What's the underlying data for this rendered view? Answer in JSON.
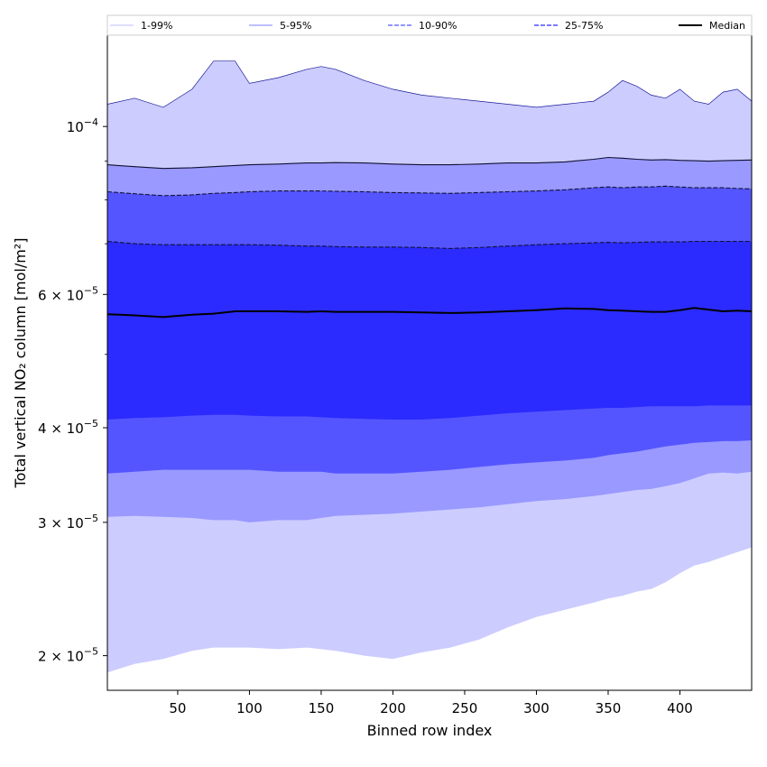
{
  "chart_data": {
    "type": "area",
    "xlabel": "Binned row index",
    "ylabel": "Total vertical NO₂ column [mol/m²]",
    "y_scale": "log",
    "xlim": [
      1,
      450
    ],
    "ylim": [
      1.8e-05,
      0.000132
    ],
    "x_ticks": [
      50,
      100,
      150,
      200,
      250,
      300,
      350,
      400
    ],
    "y_ticks": [
      {
        "value": 0.0001,
        "base": "10",
        "exp": "−4"
      },
      {
        "value": 6e-05,
        "base": "6 × 10",
        "exp": "−5"
      },
      {
        "value": 4e-05,
        "base": "4 × 10",
        "exp": "−5"
      },
      {
        "value": 3e-05,
        "base": "3 × 10",
        "exp": "−5"
      },
      {
        "value": 2e-05,
        "base": "2 × 10",
        "exp": "−5"
      }
    ],
    "grid": false,
    "legend_position": "top",
    "colors": {
      "band_1_99": "#ccccff",
      "band_5_95": "#9999ff",
      "band_10_90": "#5555ff",
      "band_25_75": "#2b2bff",
      "median": "#000000",
      "legend_line_1_99": "#ccccff",
      "legend_line_5_95": "#9999ff",
      "legend_line_10_90": "#5555ff",
      "legend_line_25_75": "#2b2bff"
    },
    "legend": [
      {
        "label": "1-99%",
        "style": "solid",
        "colorKey": "legend_line_1_99"
      },
      {
        "label": "5-95%",
        "style": "solid",
        "colorKey": "legend_line_5_95"
      },
      {
        "label": "10-90%",
        "style": "dashed",
        "colorKey": "legend_line_10_90"
      },
      {
        "label": "25-75%",
        "style": "dashed",
        "colorKey": "legend_line_25_75"
      },
      {
        "label": "Median",
        "style": "solid",
        "colorKey": "median"
      }
    ],
    "x": [
      1,
      20,
      40,
      60,
      75,
      90,
      100,
      120,
      140,
      150,
      160,
      180,
      200,
      220,
      240,
      260,
      280,
      300,
      320,
      340,
      350,
      360,
      370,
      380,
      390,
      400,
      410,
      420,
      430,
      440,
      450
    ],
    "series": [
      {
        "name": "1-99%",
        "lower": [
          1.9e-05,
          1.95e-05,
          1.98e-05,
          2.03e-05,
          2.05e-05,
          2.05e-05,
          2.05e-05,
          2.04e-05,
          2.05e-05,
          2.04e-05,
          2.03e-05,
          2e-05,
          1.98e-05,
          2.02e-05,
          2.05e-05,
          2.1e-05,
          2.18e-05,
          2.25e-05,
          2.3e-05,
          2.35e-05,
          2.38e-05,
          2.4e-05,
          2.43e-05,
          2.45e-05,
          2.5e-05,
          2.57e-05,
          2.63e-05,
          2.66e-05,
          2.7e-05,
          2.74e-05,
          2.78e-05
        ],
        "upper": [
          0.000107,
          0.000109,
          0.000106,
          0.000112,
          0.000122,
          0.000122,
          0.000114,
          0.000116,
          0.000119,
          0.00012,
          0.000119,
          0.000115,
          0.000112,
          0.00011,
          0.000109,
          0.000108,
          0.000107,
          0.000106,
          0.000107,
          0.000108,
          0.000111,
          0.000115,
          0.000113,
          0.00011,
          0.000109,
          0.000112,
          0.000108,
          0.000107,
          0.000111,
          0.000112,
          0.000108
        ]
      },
      {
        "name": "5-95%",
        "lower": [
          3.05e-05,
          3.06e-05,
          3.05e-05,
          3.04e-05,
          3.02e-05,
          3.02e-05,
          3e-05,
          3.02e-05,
          3.02e-05,
          3.04e-05,
          3.06e-05,
          3.07e-05,
          3.08e-05,
          3.1e-05,
          3.12e-05,
          3.14e-05,
          3.17e-05,
          3.2e-05,
          3.22e-05,
          3.25e-05,
          3.27e-05,
          3.29e-05,
          3.31e-05,
          3.32e-05,
          3.35e-05,
          3.38e-05,
          3.43e-05,
          3.48e-05,
          3.49e-05,
          3.48e-05,
          3.5e-05
        ],
        "upper": [
          8.9e-05,
          8.85e-05,
          8.8e-05,
          8.82e-05,
          8.85e-05,
          8.88e-05,
          8.9e-05,
          8.92e-05,
          8.95e-05,
          8.95e-05,
          8.96e-05,
          8.95e-05,
          8.92e-05,
          8.9e-05,
          8.9e-05,
          8.92e-05,
          8.95e-05,
          8.95e-05,
          8.98e-05,
          9.05e-05,
          9.1e-05,
          9.08e-05,
          9.05e-05,
          9.03e-05,
          9.04e-05,
          9.02e-05,
          9.01e-05,
          9e-05,
          9.01e-05,
          9.02e-05,
          9.03e-05
        ]
      },
      {
        "name": "10-90%",
        "lower": [
          3.48e-05,
          3.5e-05,
          3.52e-05,
          3.52e-05,
          3.52e-05,
          3.52e-05,
          3.52e-05,
          3.5e-05,
          3.5e-05,
          3.5e-05,
          3.48e-05,
          3.48e-05,
          3.48e-05,
          3.5e-05,
          3.52e-05,
          3.55e-05,
          3.58e-05,
          3.6e-05,
          3.62e-05,
          3.65e-05,
          3.68e-05,
          3.7e-05,
          3.72e-05,
          3.75e-05,
          3.78e-05,
          3.8e-05,
          3.82e-05,
          3.83e-05,
          3.84e-05,
          3.84e-05,
          3.85e-05
        ],
        "upper": [
          8.2e-05,
          8.15e-05,
          8.1e-05,
          8.12e-05,
          8.16e-05,
          8.18e-05,
          8.2e-05,
          8.22e-05,
          8.22e-05,
          8.22e-05,
          8.21e-05,
          8.2e-05,
          8.18e-05,
          8.17e-05,
          8.16e-05,
          8.18e-05,
          8.2e-05,
          8.22e-05,
          8.25e-05,
          8.3e-05,
          8.32e-05,
          8.3e-05,
          8.32e-05,
          8.32e-05,
          8.34e-05,
          8.32e-05,
          8.3e-05,
          8.3e-05,
          8.3e-05,
          8.28e-05,
          8.27e-05
        ]
      },
      {
        "name": "25-75%",
        "lower": [
          4.1e-05,
          4.12e-05,
          4.13e-05,
          4.15e-05,
          4.16e-05,
          4.16e-05,
          4.15e-05,
          4.14e-05,
          4.14e-05,
          4.13e-05,
          4.12e-05,
          4.11e-05,
          4.1e-05,
          4.1e-05,
          4.12e-05,
          4.15e-05,
          4.18e-05,
          4.2e-05,
          4.22e-05,
          4.24e-05,
          4.25e-05,
          4.25e-05,
          4.26e-05,
          4.27e-05,
          4.27e-05,
          4.27e-05,
          4.27e-05,
          4.28e-05,
          4.28e-05,
          4.28e-05,
          4.28e-05
        ],
        "upper": [
          7.05e-05,
          7e-05,
          6.98e-05,
          6.98e-05,
          6.98e-05,
          6.98e-05,
          6.98e-05,
          6.97e-05,
          6.95e-05,
          6.95e-05,
          6.94e-05,
          6.93e-05,
          6.93e-05,
          6.92e-05,
          6.9e-05,
          6.92e-05,
          6.95e-05,
          6.98e-05,
          7e-05,
          7.02e-05,
          7.03e-05,
          7.02e-05,
          7.03e-05,
          7.04e-05,
          7.04e-05,
          7.04e-05,
          7.05e-05,
          7.05e-05,
          7.05e-05,
          7.05e-05,
          7.05e-05
        ]
      },
      {
        "name": "Median",
        "values": [
          5.65e-05,
          5.63e-05,
          5.6e-05,
          5.64e-05,
          5.66e-05,
          5.7e-05,
          5.7e-05,
          5.7e-05,
          5.69e-05,
          5.7e-05,
          5.69e-05,
          5.69e-05,
          5.69e-05,
          5.68e-05,
          5.67e-05,
          5.68e-05,
          5.7e-05,
          5.72e-05,
          5.75e-05,
          5.74e-05,
          5.72e-05,
          5.71e-05,
          5.7e-05,
          5.69e-05,
          5.69e-05,
          5.72e-05,
          5.76e-05,
          5.73e-05,
          5.7e-05,
          5.71e-05,
          5.7e-05
        ]
      }
    ]
  }
}
